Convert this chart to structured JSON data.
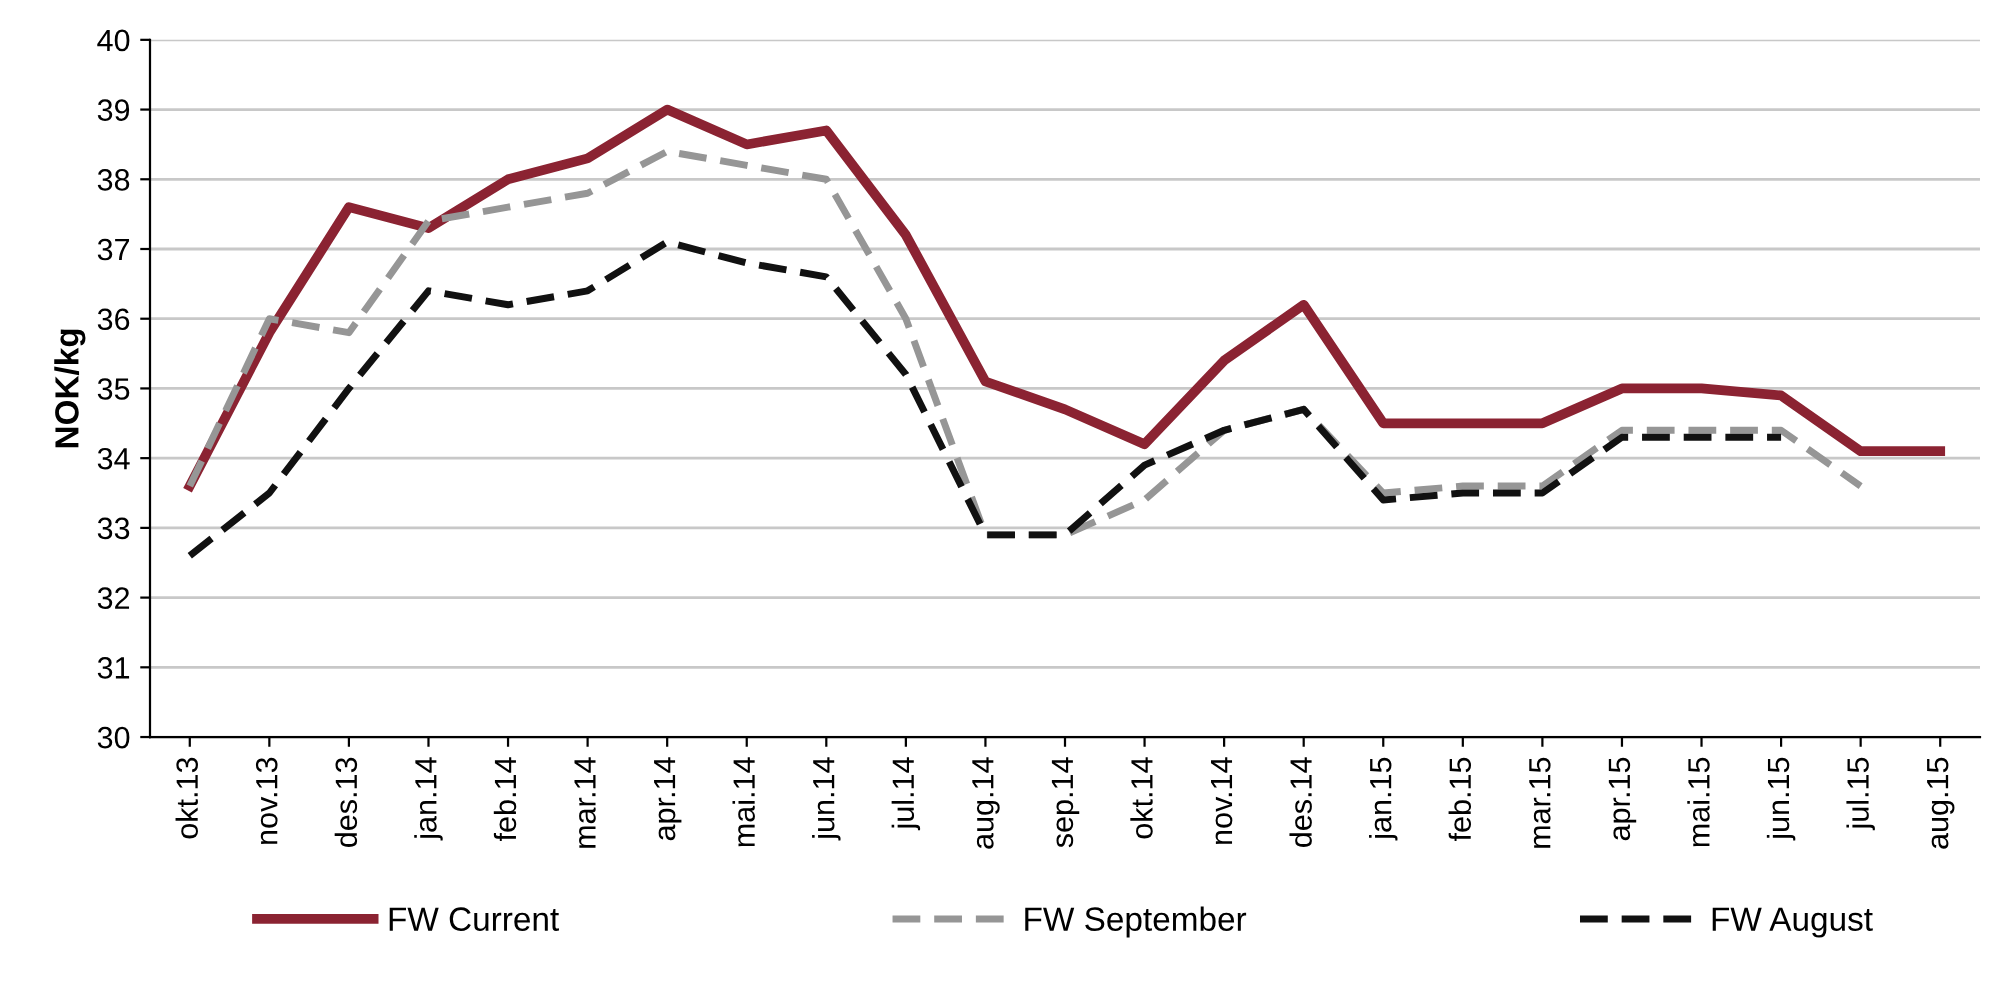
{
  "chart_data": {
    "type": "line",
    "ylabel": "NOK/kg",
    "categories": [
      "okt.13",
      "nov.13",
      "des.13",
      "jan.14",
      "feb.14",
      "mar.14",
      "apr.14",
      "mai.14",
      "jun.14",
      "jul.14",
      "aug.14",
      "sep.14",
      "okt.14",
      "nov.14",
      "des.14",
      "jan.15",
      "feb.15",
      "mar.15",
      "apr.15",
      "mai.15",
      "jun.15",
      "jul.15",
      "aug.15"
    ],
    "series": [
      {
        "name": "FW Current",
        "color": "#8b2332",
        "line_style": "solid",
        "values": [
          33.6,
          35.8,
          37.6,
          37.3,
          38.0,
          38.3,
          39.0,
          38.5,
          38.7,
          37.2,
          35.1,
          34.7,
          34.2,
          35.4,
          36.2,
          34.5,
          34.5,
          34.5,
          35.0,
          35.0,
          34.9,
          34.1,
          34.1
        ]
      },
      {
        "name": "FW September",
        "color": "#969696",
        "line_style": "dashed",
        "values": [
          33.6,
          36.0,
          35.8,
          37.4,
          37.6,
          37.8,
          38.4,
          38.2,
          38.0,
          36.0,
          32.9,
          32.9,
          33.4,
          34.4,
          34.7,
          33.5,
          33.6,
          33.6,
          34.4,
          34.4,
          34.4,
          33.6,
          null
        ]
      },
      {
        "name": "FW August",
        "color": "#111111",
        "line_style": "dashed",
        "values": [
          32.6,
          33.5,
          35.0,
          36.4,
          36.2,
          36.4,
          37.1,
          36.8,
          36.6,
          35.2,
          32.9,
          32.9,
          33.9,
          34.4,
          34.7,
          33.4,
          33.5,
          33.5,
          34.3,
          34.3,
          34.3,
          null,
          null
        ]
      }
    ],
    "ylim": [
      30,
      40
    ],
    "yticks": [
      30,
      31,
      32,
      33,
      34,
      35,
      36,
      37,
      38,
      39,
      40
    ],
    "grid": "y",
    "legend": "bottom",
    "marker": "none"
  }
}
